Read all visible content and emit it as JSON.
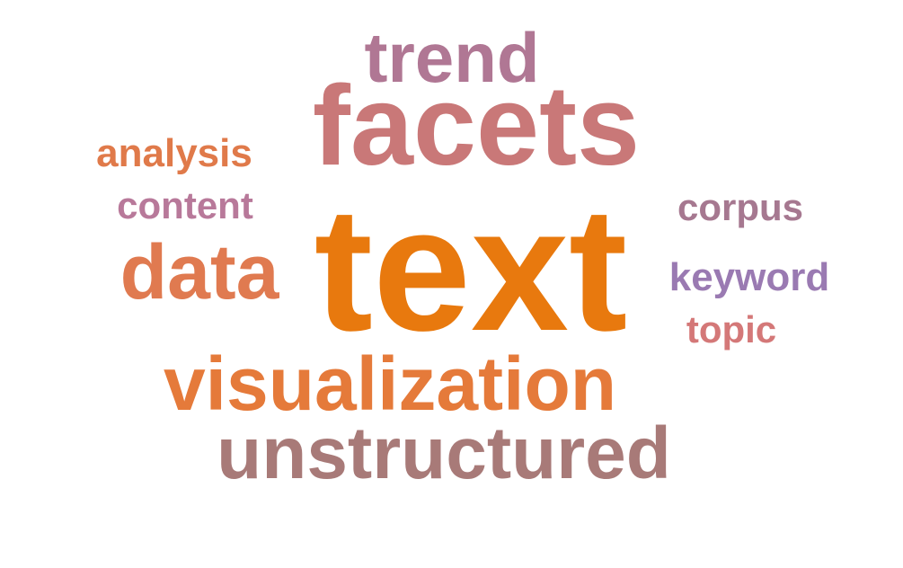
{
  "word_cloud": {
    "words": [
      {
        "key": "trend",
        "text": "trend",
        "color": "#b07794"
      },
      {
        "key": "facets",
        "text": "facets",
        "color": "#c97878"
      },
      {
        "key": "analysis",
        "text": "analysis",
        "color": "#e07a4a"
      },
      {
        "key": "content",
        "text": "content",
        "color": "#b8799a"
      },
      {
        "key": "corpus",
        "text": "corpus",
        "color": "#a67890"
      },
      {
        "key": "data",
        "text": "data",
        "color": "#e07a50"
      },
      {
        "key": "text",
        "text": "text",
        "color": "#e8790e"
      },
      {
        "key": "keyword",
        "text": "keyword",
        "color": "#9a7ab2"
      },
      {
        "key": "topic",
        "text": "topic",
        "color": "#d47878"
      },
      {
        "key": "visualization",
        "text": "visualization",
        "color": "#e57a3a"
      },
      {
        "key": "unstructured",
        "text": "unstructured",
        "color": "#a87a78"
      }
    ]
  }
}
